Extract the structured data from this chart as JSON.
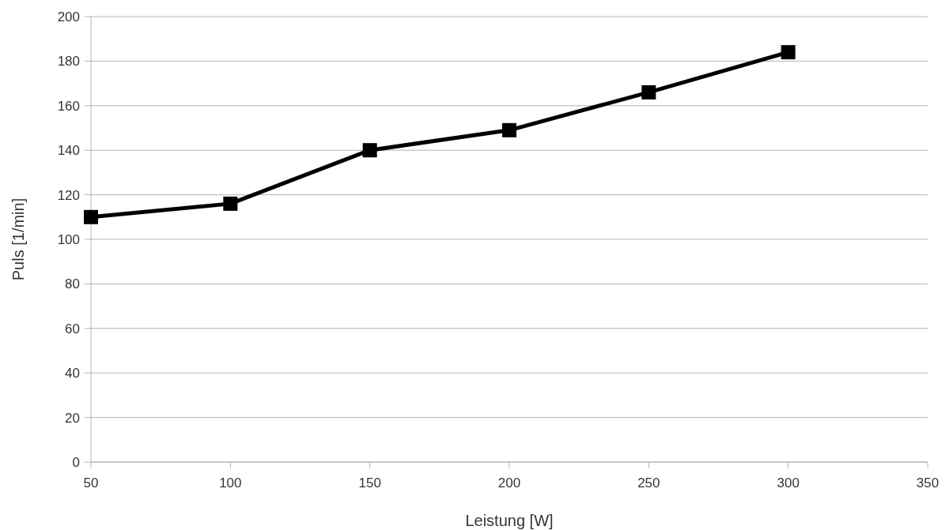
{
  "chart_data": {
    "type": "line",
    "xlabel": "Leistung [W]",
    "ylabel": "Puls [1/min]",
    "x": [
      50,
      100,
      150,
      200,
      250,
      300
    ],
    "series": [
      {
        "color": "#000000",
        "values": [
          110,
          116,
          140,
          149,
          166,
          184
        ]
      }
    ],
    "xlim": [
      50,
      350
    ],
    "xticks": [
      50,
      100,
      150,
      200,
      250,
      300,
      350
    ],
    "ylim": [
      0,
      200
    ],
    "yticks": [
      0,
      20,
      40,
      60,
      80,
      100,
      120,
      140,
      160,
      180,
      200
    ],
    "grid": "y",
    "marker": "square",
    "line_style": "solid"
  }
}
